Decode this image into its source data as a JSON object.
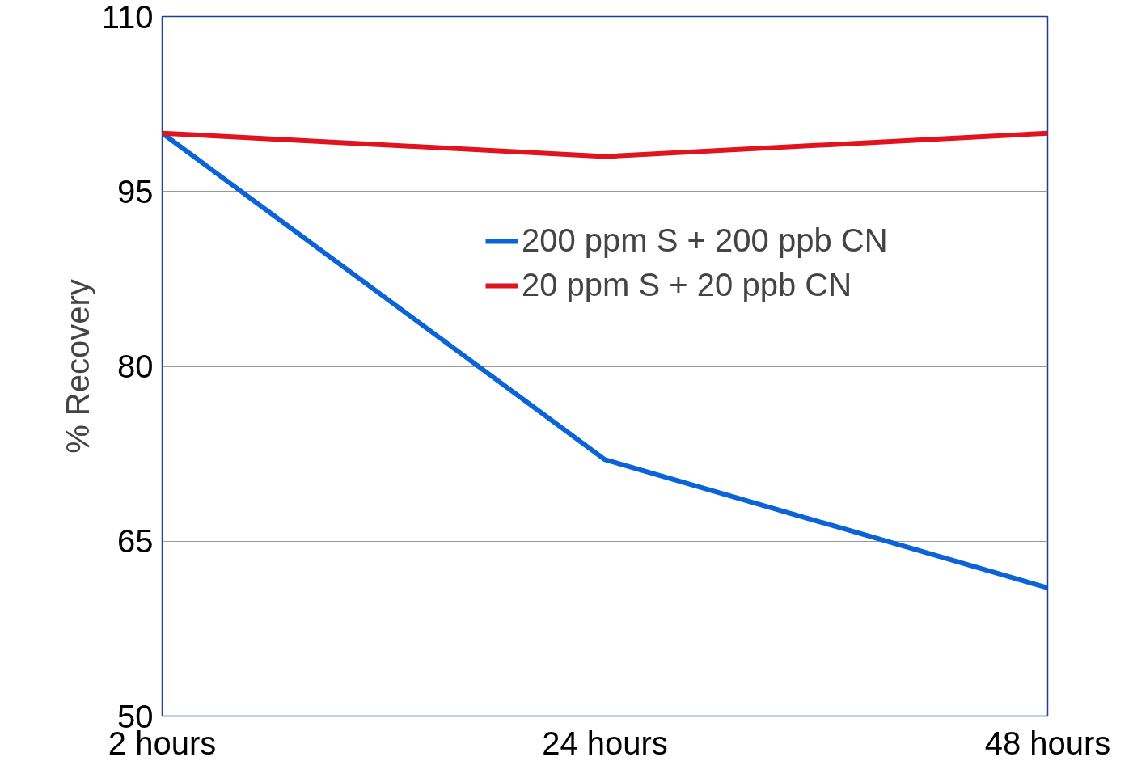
{
  "chart_data": {
    "type": "line",
    "ylabel": "% Recovery",
    "categories": [
      "2 hours",
      "24 hours",
      "48 hours"
    ],
    "series": [
      {
        "name": "200 ppm S + 200 ppb CN",
        "color": "#0a64d8",
        "values": [
          100,
          72,
          61
        ]
      },
      {
        "name": "20 ppm S + 20 ppb CN",
        "color": "#e0141e",
        "values": [
          100,
          98,
          100
        ]
      }
    ],
    "ylim": [
      50,
      110
    ],
    "yticks": [
      50,
      65,
      80,
      95,
      110
    ],
    "grid": "y",
    "legend": "top right",
    "marker": "none",
    "line_style": "solid"
  }
}
